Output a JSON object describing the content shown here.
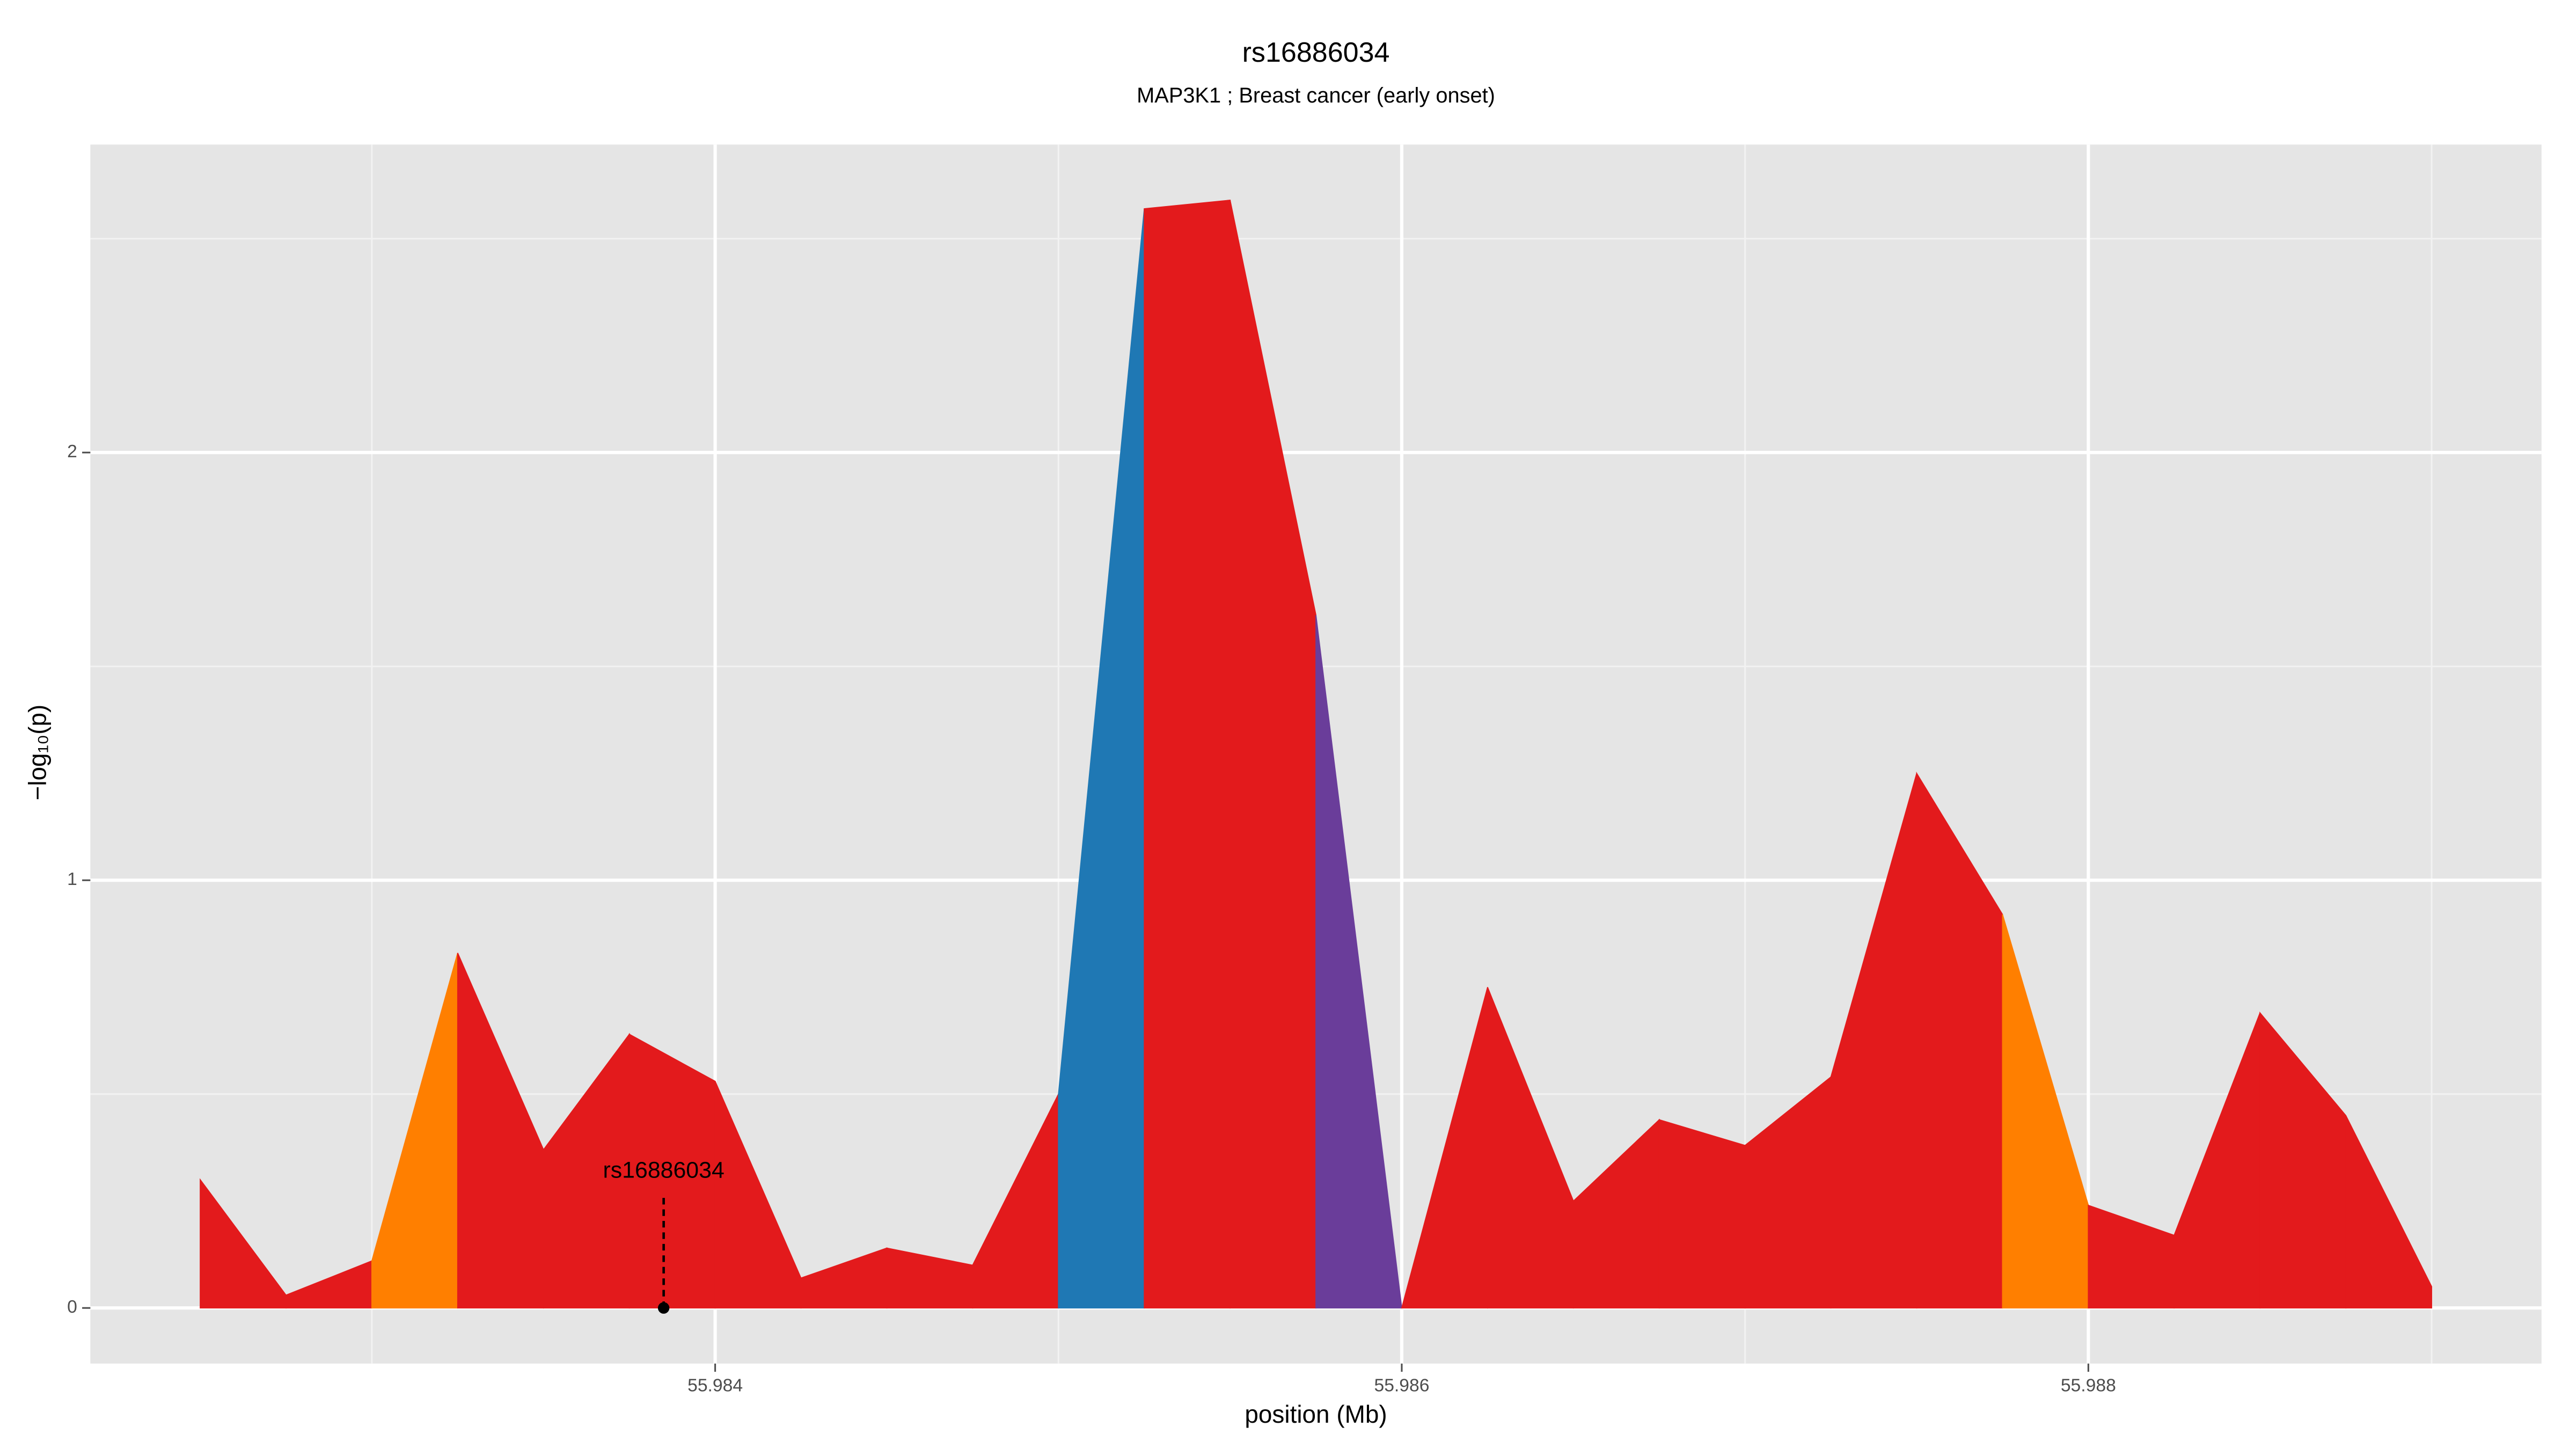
{
  "chart_data": {
    "type": "area",
    "title": "rs16886034",
    "subtitle": "MAP3K1 ; Breast cancer (early onset)",
    "x_label": "position (Mb)",
    "y_label": "−log₁₀(p)",
    "x": [
      55.9825,
      55.98275,
      55.983,
      55.98325,
      55.9835,
      55.98375,
      55.984,
      55.98425,
      55.9845,
      55.98475,
      55.985,
      55.98525,
      55.9855,
      55.98575,
      55.986,
      55.98625,
      55.9865,
      55.98675,
      55.987,
      55.98725,
      55.9875,
      55.98775,
      55.988,
      55.98825,
      55.9885,
      55.98875,
      55.989
    ],
    "values": [
      0.3,
      0.03,
      0.11,
      0.83,
      0.37,
      0.64,
      0.53,
      0.07,
      0.14,
      0.1,
      0.5,
      2.57,
      2.59,
      1.62,
      0.0,
      0.75,
      0.25,
      0.44,
      0.38,
      0.54,
      1.25,
      0.92,
      0.24,
      0.17,
      0.69,
      0.45,
      0.05
    ],
    "segment_colors": [
      "#e31a1c",
      "#e31a1c",
      "#ff7f00",
      "#e31a1c",
      "#e31a1c",
      "#e31a1c",
      "#e31a1c",
      "#e31a1c",
      "#e31a1c",
      "#e31a1c",
      "#1f78b4",
      "#e31a1c",
      "#e31a1c",
      "#6a3d9a",
      "#e31a1c",
      "#e31a1c",
      "#e31a1c",
      "#e31a1c",
      "#e31a1c",
      "#e31a1c",
      "#e31a1c",
      "#ff7f00",
      "#e31a1c",
      "#e31a1c",
      "#e31a1c",
      "#e31a1c"
    ],
    "annotation": {
      "text": "rs16886034",
      "x": 55.98385,
      "y": 0
    },
    "xlim": [
      55.98218,
      55.98932
    ],
    "ylim": [
      -0.13,
      2.72
    ],
    "xticks": [
      55.984,
      55.986,
      55.988
    ],
    "minor_xticks": [
      55.983,
      55.985,
      55.987,
      55.989
    ],
    "yticks": [
      0,
      1,
      2
    ],
    "minor_yticks": [
      0.5,
      1.5,
      2.5
    ],
    "grid": true
  }
}
